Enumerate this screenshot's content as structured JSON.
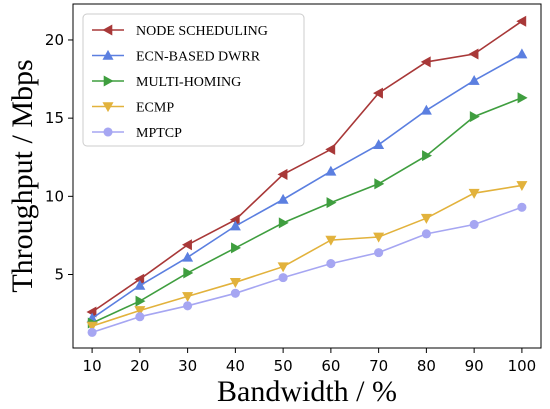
{
  "chart_data": {
    "type": "line",
    "xlabel": "Bandwidth / %",
    "ylabel": "Throughput / Mbps",
    "x": [
      10,
      20,
      30,
      40,
      50,
      60,
      70,
      80,
      90,
      100
    ],
    "xlim": [
      6,
      104
    ],
    "ylim": [
      0.3,
      22.3
    ],
    "xticks": [
      10,
      20,
      30,
      40,
      50,
      60,
      70,
      80,
      90,
      100
    ],
    "yticks": [
      5,
      10,
      15,
      20
    ],
    "grid": false,
    "legend_position": "top-left",
    "series": [
      {
        "name": "NODE SCHEDULING",
        "color": "#a83838",
        "marker": "triangle-left",
        "values": [
          2.6,
          4.7,
          6.9,
          8.5,
          11.4,
          13.0,
          16.6,
          18.6,
          19.1,
          21.2
        ]
      },
      {
        "name": "ECN-BASED DWRR",
        "color": "#5b7fe0",
        "marker": "triangle-up",
        "values": [
          2.2,
          4.3,
          6.1,
          8.1,
          9.8,
          11.6,
          13.3,
          15.5,
          17.4,
          19.1
        ]
      },
      {
        "name": "MULTI-HOMING",
        "color": "#3f9e3f",
        "marker": "triangle-right",
        "values": [
          1.9,
          3.3,
          5.1,
          6.7,
          8.3,
          9.6,
          10.8,
          12.6,
          15.1,
          16.3
        ]
      },
      {
        "name": "ECMP",
        "color": "#e2b23c",
        "marker": "triangle-down",
        "values": [
          1.7,
          2.7,
          3.6,
          4.5,
          5.5,
          7.2,
          7.4,
          8.6,
          10.2,
          10.7
        ]
      },
      {
        "name": "MPTCP",
        "color": "#a6a6f2",
        "marker": "circle",
        "values": [
          1.3,
          2.3,
          3.0,
          3.8,
          4.8,
          5.7,
          6.4,
          7.6,
          8.2,
          9.3
        ]
      }
    ]
  }
}
